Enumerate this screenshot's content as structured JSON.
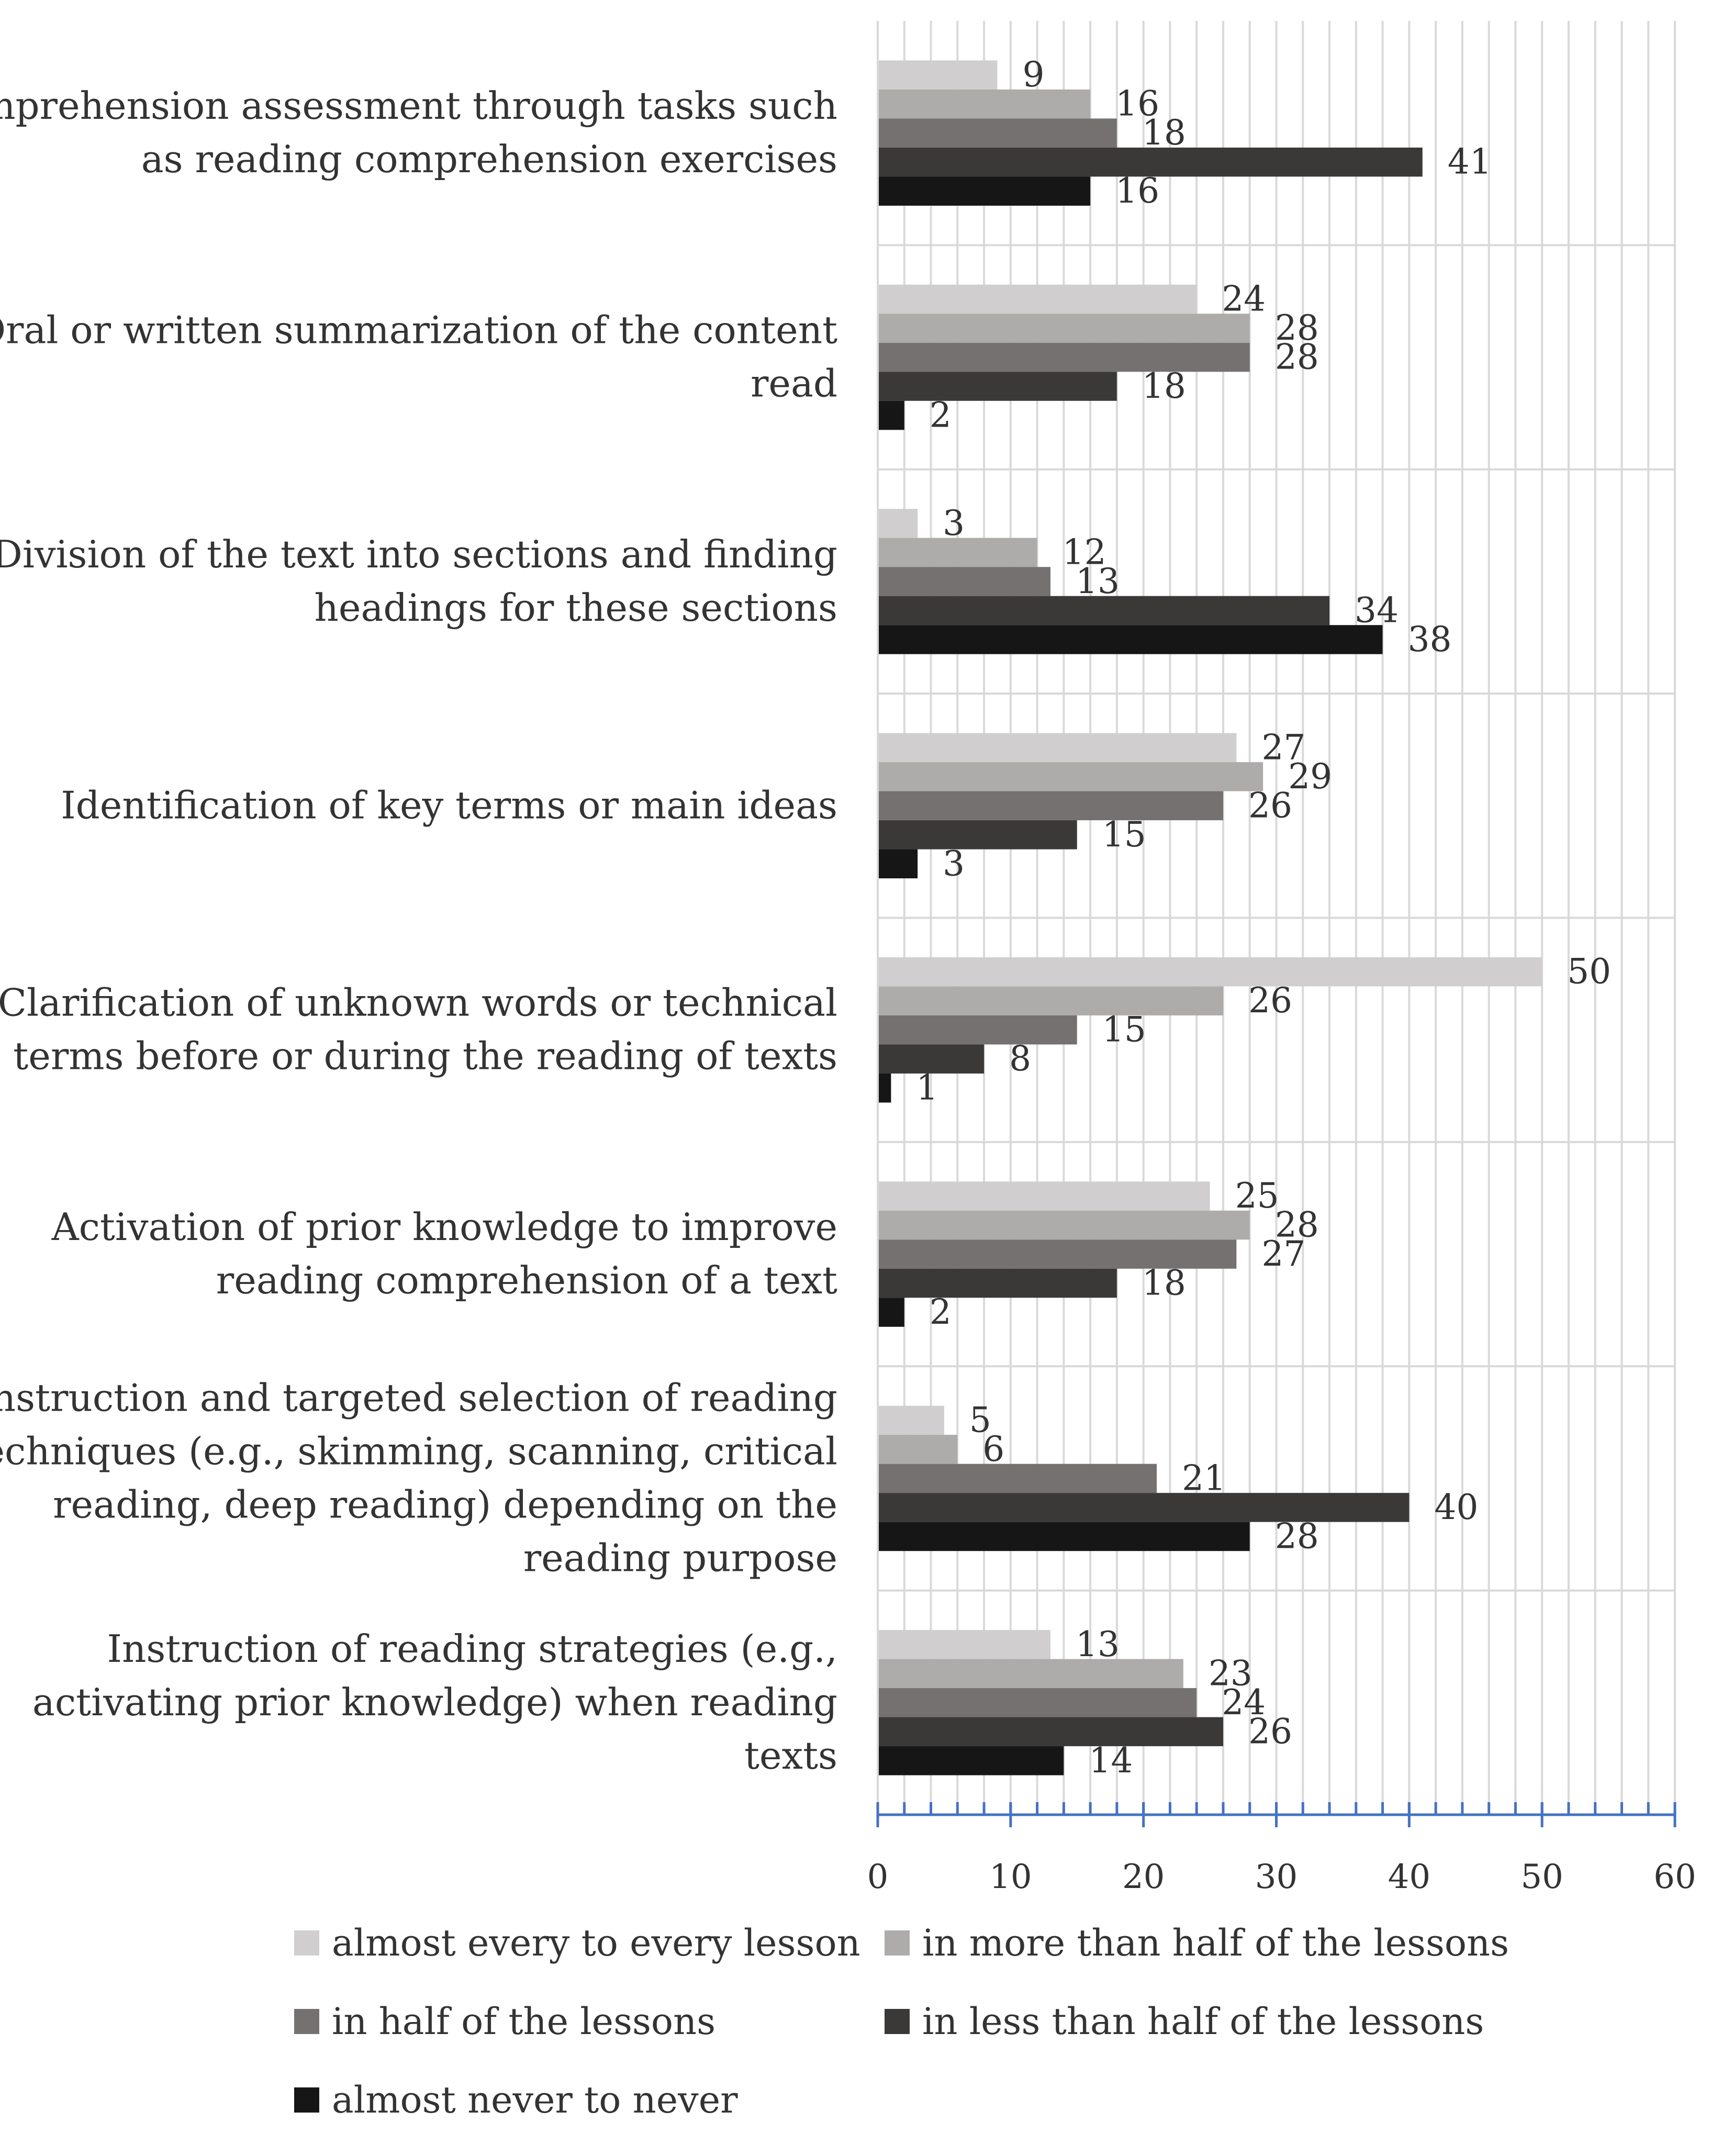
{
  "chart_data": {
    "type": "bar",
    "orientation": "horizontal",
    "categories": [
      [
        "Comprehension assessment through tasks such",
        "as reading comprehension exercises"
      ],
      [
        "Oral or written summarization of the content",
        "read"
      ],
      [
        "Division of the text into sections and finding",
        "headings for these sections"
      ],
      [
        "Identification of key terms or main ideas"
      ],
      [
        "Clarification of unknown words or technical",
        "terms before or during the reading of texts"
      ],
      [
        "Activation of prior knowledge  to improve",
        "reading comprehension of a text"
      ],
      [
        "Instruction and targeted selection of reading",
        "techniques (e.g., skimming, scanning, critical",
        "reading, deep reading) depending on the",
        "reading purpose"
      ],
      [
        "Instruction  of reading strategies (e.g.,",
        "activating prior knowledge) when reading",
        "texts"
      ]
    ],
    "series": [
      {
        "name": "almost every to every lesson",
        "color": "#d0cece",
        "values": [
          9,
          24,
          3,
          27,
          50,
          25,
          5,
          13
        ]
      },
      {
        "name": "in more than half of the lessons",
        "color": "#aeabab",
        "values": [
          16,
          28,
          12,
          29,
          26,
          28,
          6,
          23
        ]
      },
      {
        "name": "in half of the lessons",
        "color": "#767171",
        "values": [
          18,
          28,
          13,
          26,
          15,
          27,
          21,
          24
        ]
      },
      {
        "name": "in less than half of the lessons",
        "color": "#3b3838",
        "values": [
          41,
          18,
          34,
          15,
          8,
          18,
          40,
          26
        ]
      },
      {
        "name": "almost never to never",
        "color": "#161616",
        "values": [
          16,
          2,
          38,
          3,
          1,
          2,
          28,
          14
        ]
      }
    ],
    "xlim": [
      0,
      60
    ],
    "xticks": [
      0,
      10,
      20,
      30,
      40,
      50,
      60
    ],
    "minor_grid_step": 2,
    "axis_color": "#4472c4",
    "grid_color": "#d9d9d9",
    "legend_position": "bottom",
    "title": "",
    "xlabel": "",
    "ylabel": ""
  }
}
